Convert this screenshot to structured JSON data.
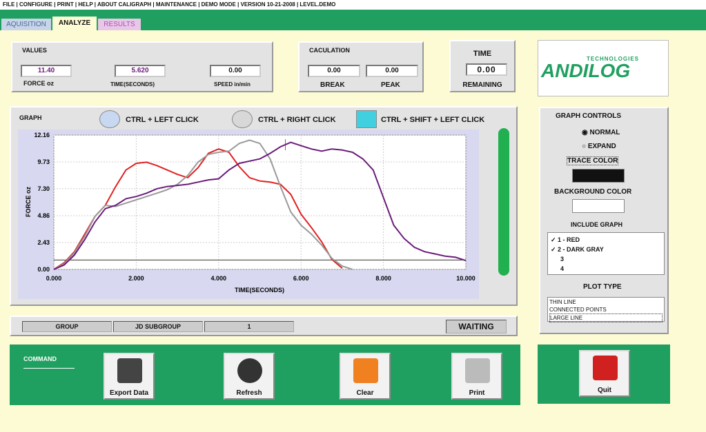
{
  "menu": "FILE |  CONFIGURE |  PRINT |  HELP |  ABOUT CALIGRAPH |  MAINTENANCE |  DEMO MODE |  VERSION 10-21-2008 |  LEVEL.DEMO",
  "tabs": [
    "AQUISITION",
    "ANALYZE",
    "RESULTS"
  ],
  "values": {
    "title": "VALUES",
    "fields": [
      {
        "value": "11.40",
        "label": "FORCE oz"
      },
      {
        "value": "5.620",
        "label": "TIME(SECONDS)"
      },
      {
        "value": "0.00",
        "label": "SPEED in/min"
      }
    ]
  },
  "calculation": {
    "title": "CACULATION",
    "fields": [
      {
        "value": "0.00",
        "label": "BREAK"
      },
      {
        "value": "0.00",
        "label": "PEAK"
      }
    ]
  },
  "time": {
    "title": "TIME",
    "value": "0.00",
    "label": "REMAINING"
  },
  "logo": {
    "tagline": "TECHNOLOGIES",
    "brand": "ANDILOG"
  },
  "graph": {
    "title": "GRAPH",
    "hints": [
      "CTRL + LEFT CLICK",
      "CTRL + RIGHT CLICK",
      "CTRL + SHIFT + LEFT CLICK"
    ]
  },
  "chart_data": {
    "type": "line",
    "x_label": "TIME(SECONDS)",
    "y_label": "FORCE oz",
    "xlim": [
      0,
      10
    ],
    "xticks": [
      {
        "value": 0,
        "label": "0.000"
      },
      {
        "value": 2,
        "label": "2.000"
      },
      {
        "value": 4,
        "label": "4.000"
      },
      {
        "value": 6,
        "label": "6.000"
      },
      {
        "value": 8,
        "label": "8.000"
      },
      {
        "value": 10,
        "label": "10.000"
      }
    ],
    "ylim": [
      0,
      12.16
    ],
    "yticks": [
      {
        "value": 0,
        "label": "0.00"
      },
      {
        "value": 2.43,
        "label": "2.43"
      },
      {
        "value": 4.86,
        "label": "4.86"
      },
      {
        "value": 7.3,
        "label": "7.30"
      },
      {
        "value": 9.73,
        "label": "9.73"
      },
      {
        "value": 12.16,
        "label": "12.16"
      }
    ],
    "grid": true,
    "reference_line": 0.85,
    "cursor_x": 5.62,
    "x": [
      0,
      0.25,
      0.5,
      0.75,
      1,
      1.25,
      1.5,
      1.75,
      2,
      2.25,
      2.5,
      2.75,
      3,
      3.25,
      3.5,
      3.75,
      4,
      4.25,
      4.5,
      4.75,
      5,
      5.25,
      5.5,
      5.75,
      6,
      6.25,
      6.5,
      6.75,
      7,
      7.25,
      7.5,
      7.75,
      8,
      8.25,
      8.5,
      8.75,
      9,
      9.25,
      9.5,
      9.75,
      10
    ],
    "series": [
      {
        "color": "#e02020",
        "values": [
          0,
          0.6,
          1.6,
          3.2,
          4.8,
          5.8,
          7.5,
          9.0,
          9.6,
          9.7,
          9.4,
          9.0,
          8.6,
          8.3,
          9.2,
          10.5,
          10.9,
          10.6,
          9.3,
          8.3,
          8.0,
          7.9,
          7.7,
          6.8,
          5.0,
          3.8,
          2.5,
          0.9,
          0.1,
          null,
          null,
          null,
          null,
          null,
          null,
          null,
          null,
          null,
          null,
          null,
          null
        ]
      },
      {
        "color": "#999999",
        "values": [
          0,
          0.5,
          1.5,
          3.0,
          4.8,
          5.8,
          5.7,
          6.0,
          6.3,
          6.6,
          6.9,
          7.2,
          7.7,
          8.5,
          9.7,
          10.4,
          10.6,
          10.7,
          11.4,
          11.7,
          11.4,
          10.0,
          7.5,
          5.2,
          4.0,
          3.2,
          2.2,
          1.0,
          0.3,
          0.0,
          null,
          null,
          null,
          null,
          null,
          null,
          null,
          null,
          null,
          null,
          null
        ]
      },
      {
        "color": "#6a1a7a",
        "values": [
          0,
          0.4,
          1.3,
          2.7,
          4.3,
          5.5,
          5.8,
          6.4,
          6.6,
          6.9,
          7.3,
          7.5,
          7.6,
          7.7,
          7.9,
          8.1,
          8.2,
          9.0,
          9.6,
          9.8,
          10.0,
          10.5,
          11.1,
          11.5,
          11.2,
          10.9,
          10.7,
          10.9,
          10.8,
          10.6,
          10.0,
          9.0,
          6.5,
          4.0,
          2.8,
          2.0,
          1.6,
          1.4,
          1.2,
          1.1,
          0.8
        ]
      }
    ]
  },
  "controls": {
    "title": "GRAPH CONTROLS",
    "options": [
      "NORMAL",
      "EXPAND"
    ],
    "trace_color": "TRACE COLOR",
    "background_color": "BACKGROUND COLOR",
    "include_title": "INCLUDE GRAPH",
    "include": [
      "1 - RED",
      "2 - DARK GRAY",
      "3",
      "4"
    ],
    "plot_title": "PLOT TYPE",
    "plot_types": [
      "THIN LINE",
      "CONNECTED POINTS",
      "LARGE LINE"
    ]
  },
  "status": {
    "cells": [
      "GROUP",
      "JD SUBGROUP",
      "1"
    ],
    "state": "WAITING"
  },
  "command": {
    "title": "COMMAND",
    "buttons": [
      "Export Data",
      "Refresh",
      "Clear",
      "Print",
      "Quit"
    ]
  }
}
